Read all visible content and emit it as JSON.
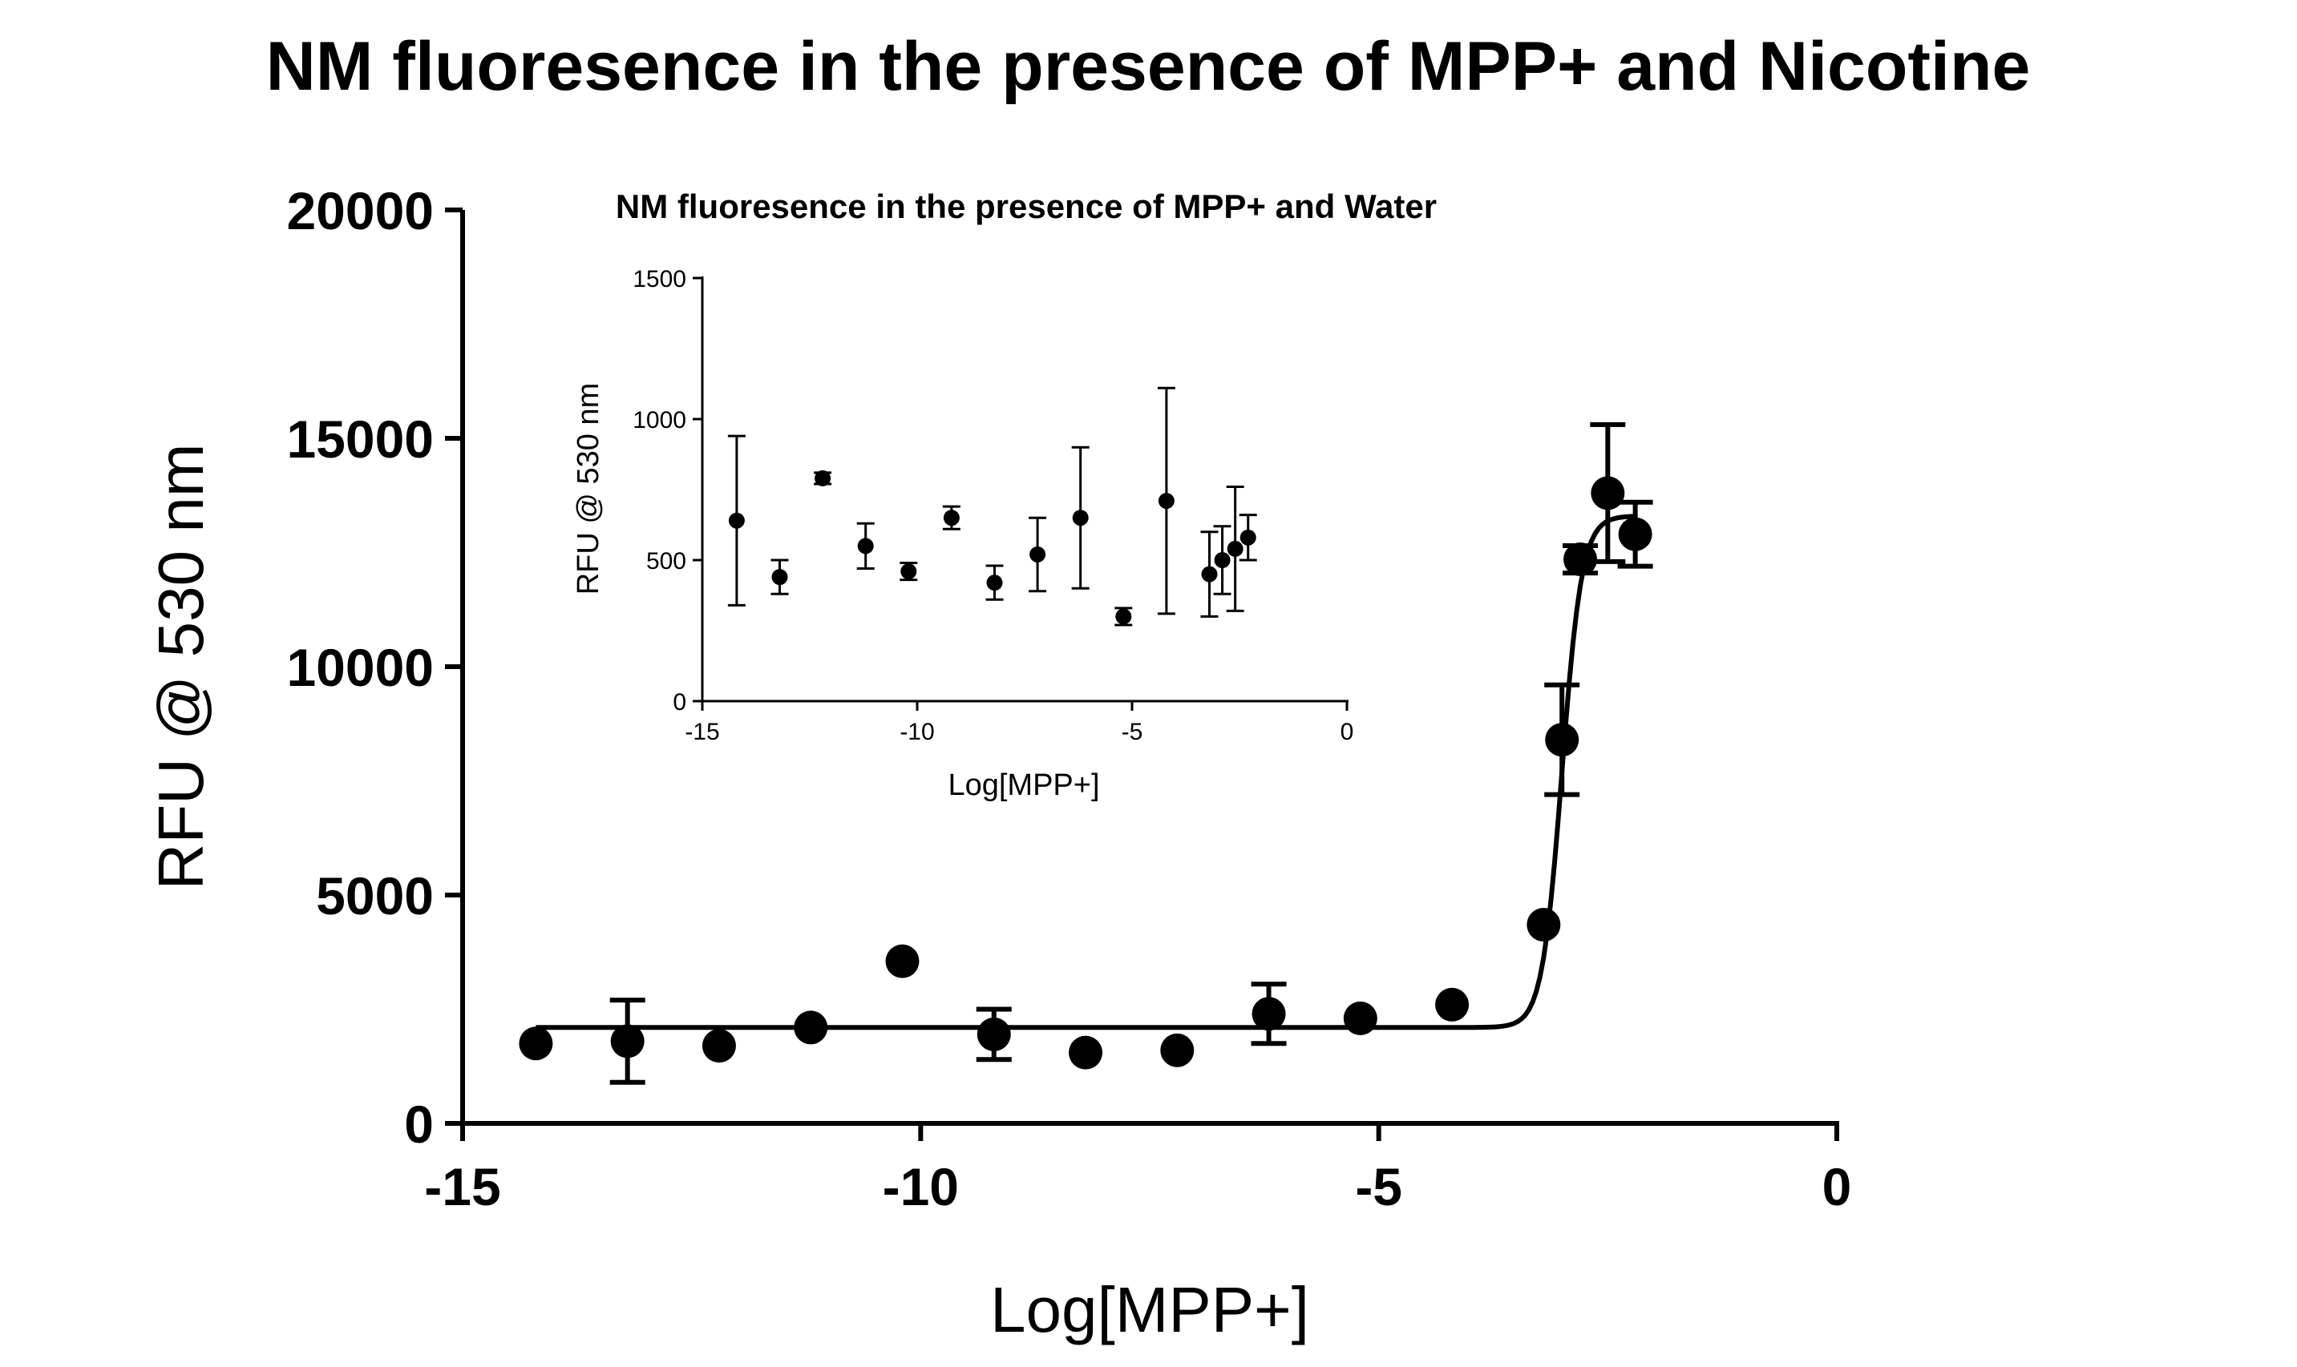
{
  "chart_data": [
    {
      "id": "main",
      "type": "scatter",
      "title": "NM fluoresence in the presence of MPP+ and Nicotine",
      "xlabel": "Log[MPP+]",
      "ylabel": "RFU @ 530 nm",
      "xlim": [
        -15,
        0
      ],
      "ylim": [
        0,
        20000
      ],
      "xticks": [
        -15,
        -10,
        -5,
        0
      ],
      "xtick_labels": [
        "-15",
        "-10",
        "-5",
        "0"
      ],
      "yticks": [
        0,
        5000,
        10000,
        15000,
        20000
      ],
      "ytick_labels": [
        "0",
        "5000",
        "10000",
        "15000",
        "20000"
      ],
      "grid": false,
      "series": [
        {
          "name": "MPP+ and Nicotine",
          "x": [
            -14.2,
            -13.2,
            -12.2,
            -11.2,
            -10.2,
            -9.2,
            -8.2,
            -7.2,
            -6.2,
            -5.2,
            -4.2,
            -3.2,
            -3.0,
            -2.8,
            -2.5,
            -2.2
          ],
          "y": [
            1750,
            1800,
            1700,
            2100,
            3550,
            1950,
            1550,
            1600,
            2400,
            2300,
            2600,
            4350,
            8400,
            12350,
            13800,
            12900
          ],
          "err": [
            0,
            900,
            0,
            0,
            0,
            550,
            0,
            0,
            650,
            0,
            0,
            0,
            1200,
            300,
            1500,
            700
          ]
        }
      ],
      "fit": {
        "model": "sigmoid",
        "bottom": 2100,
        "top": 13300,
        "logEC50": -3.0,
        "hill": 4.0,
        "x_range": [
          -14.2,
          -2.2
        ]
      }
    },
    {
      "id": "inset",
      "type": "scatter",
      "title": "NM fluoresence in the presence of MPP+ and Water",
      "xlabel": "Log[MPP+]",
      "ylabel": "RFU @ 530 nm",
      "xlim": [
        -15,
        0
      ],
      "ylim": [
        0,
        1500
      ],
      "xticks": [
        -15,
        -10,
        -5,
        0
      ],
      "xtick_labels": [
        "-15",
        "-10",
        "-5",
        "0"
      ],
      "yticks": [
        0,
        500,
        1000,
        1500
      ],
      "ytick_labels": [
        "0",
        "500",
        "1000",
        "1500"
      ],
      "grid": false,
      "series": [
        {
          "name": "MPP+ and Water",
          "x": [
            -14.2,
            -13.2,
            -12.2,
            -11.2,
            -10.2,
            -9.2,
            -8.2,
            -7.2,
            -6.2,
            -5.2,
            -4.2,
            -3.2,
            -2.9,
            -2.6,
            -2.3
          ],
          "y": [
            640,
            440,
            790,
            550,
            460,
            650,
            420,
            520,
            650,
            300,
            710,
            450,
            500,
            540,
            580
          ],
          "err": [
            300,
            60,
            20,
            80,
            30,
            40,
            60,
            130,
            250,
            30,
            400,
            150,
            120,
            220,
            80
          ]
        }
      ]
    }
  ]
}
